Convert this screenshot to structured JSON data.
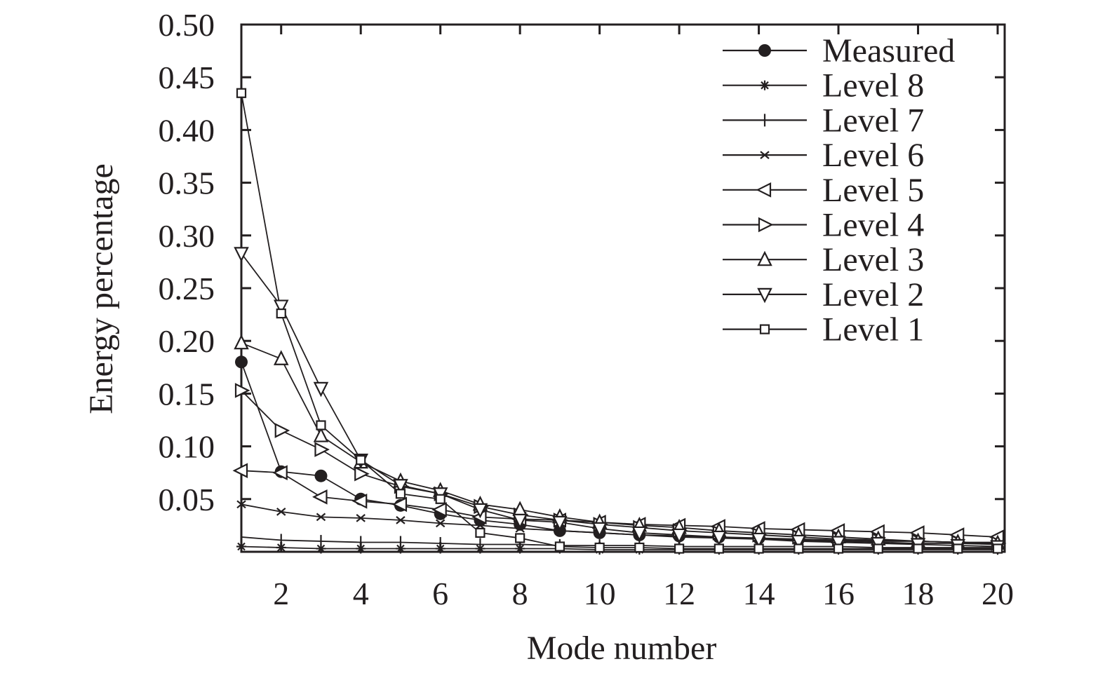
{
  "chart_data": {
    "type": "line",
    "title": "",
    "xlabel": "Mode number",
    "ylabel": "Energy percentage",
    "xlim": [
      1,
      20
    ],
    "ylim": [
      0,
      0.5
    ],
    "grid": false,
    "legend_placement": "top-right",
    "x": [
      1,
      2,
      3,
      4,
      5,
      6,
      7,
      8,
      9,
      10,
      11,
      12,
      13,
      14,
      15,
      16,
      17,
      18,
      19,
      20
    ],
    "x_ticks": [
      2,
      4,
      6,
      8,
      10,
      12,
      14,
      16,
      18,
      20
    ],
    "x_tick_labels": [
      "2",
      "4",
      "6",
      "8",
      "10",
      "12",
      "14",
      "16",
      "18",
      "20"
    ],
    "y_ticks": [
      0.05,
      0.1,
      0.15,
      0.2,
      0.25,
      0.3,
      0.35,
      0.4,
      0.45,
      0.5
    ],
    "y_tick_labels": [
      "0.05",
      "0.10",
      "0.15",
      "0.20",
      "0.25",
      "0.30",
      "0.35",
      "0.40",
      "0.45",
      "0.50"
    ],
    "color": "#231f20",
    "series": [
      {
        "name": "Measured",
        "marker": "filled-circle",
        "values": [
          0.18,
          0.076,
          0.072,
          0.05,
          0.044,
          0.036,
          0.03,
          0.026,
          0.02,
          0.018,
          0.016,
          0.015,
          0.014,
          0.013,
          0.012,
          0.011,
          0.01,
          0.01,
          0.009,
          0.009
        ]
      },
      {
        "name": "Level 8",
        "marker": "asterisk",
        "values": [
          0.005,
          0.004,
          0.003,
          0.003,
          0.003,
          0.003,
          0.003,
          0.003,
          0.003,
          0.002,
          0.002,
          0.002,
          0.002,
          0.002,
          0.002,
          0.002,
          0.002,
          0.002,
          0.002,
          0.002
        ]
      },
      {
        "name": "Level 7",
        "marker": "vertical-bar",
        "values": [
          0.014,
          0.011,
          0.01,
          0.009,
          0.009,
          0.008,
          0.007,
          0.007,
          0.006,
          0.006,
          0.006,
          0.005,
          0.005,
          0.005,
          0.005,
          0.005,
          0.004,
          0.004,
          0.004,
          0.004
        ]
      },
      {
        "name": "Level 6",
        "marker": "cross",
        "values": [
          0.045,
          0.038,
          0.033,
          0.032,
          0.03,
          0.027,
          0.025,
          0.022,
          0.02,
          0.018,
          0.016,
          0.014,
          0.013,
          0.012,
          0.011,
          0.01,
          0.009,
          0.008,
          0.008,
          0.007
        ]
      },
      {
        "name": "Level 5",
        "marker": "triangle-left",
        "values": [
          0.077,
          0.075,
          0.052,
          0.048,
          0.045,
          0.04,
          0.033,
          0.031,
          0.03,
          0.028,
          0.026,
          0.025,
          0.024,
          0.022,
          0.021,
          0.02,
          0.019,
          0.018,
          0.016,
          0.014
        ]
      },
      {
        "name": "Level 4",
        "marker": "triangle-right",
        "values": [
          0.153,
          0.115,
          0.097,
          0.074,
          0.062,
          0.055,
          0.043,
          0.035,
          0.03,
          0.026,
          0.023,
          0.02,
          0.018,
          0.016,
          0.014,
          0.012,
          0.011,
          0.01,
          0.009,
          0.008
        ]
      },
      {
        "name": "Level 3",
        "marker": "triangle-up",
        "values": [
          0.198,
          0.183,
          0.11,
          0.085,
          0.067,
          0.058,
          0.045,
          0.04,
          0.033,
          0.028,
          0.025,
          0.023,
          0.02,
          0.018,
          0.016,
          0.014,
          0.012,
          0.01,
          0.009,
          0.008
        ]
      },
      {
        "name": "Level 2",
        "marker": "triangle-down",
        "values": [
          0.283,
          0.233,
          0.155,
          0.087,
          0.063,
          0.055,
          0.04,
          0.03,
          0.028,
          0.022,
          0.018,
          0.016,
          0.014,
          0.012,
          0.01,
          0.009,
          0.008,
          0.007,
          0.006,
          0.005
        ]
      },
      {
        "name": "Level 1",
        "marker": "square",
        "values": [
          0.435,
          0.226,
          0.12,
          0.087,
          0.055,
          0.05,
          0.018,
          0.013,
          0.005,
          0.004,
          0.004,
          0.003,
          0.003,
          0.003,
          0.003,
          0.003,
          0.003,
          0.003,
          0.003,
          0.003
        ]
      }
    ]
  }
}
